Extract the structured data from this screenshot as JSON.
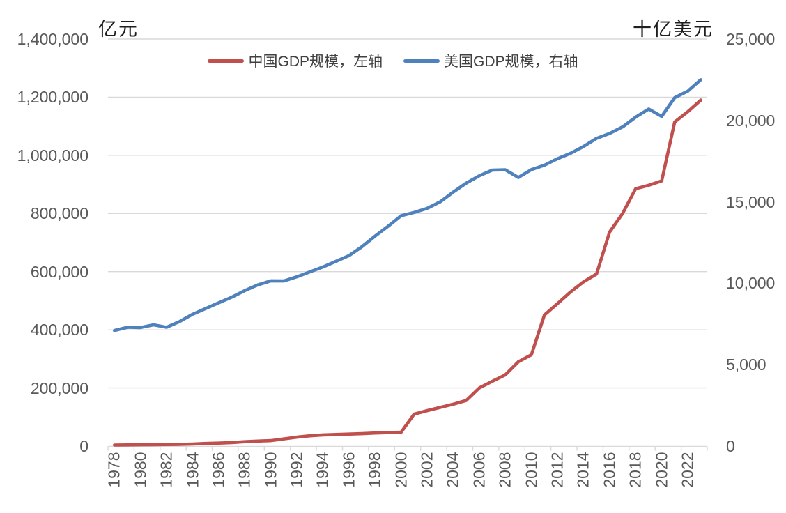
{
  "chart_data": {
    "type": "line",
    "title": "",
    "legend_position": "top",
    "grid": true,
    "x_label_interval": 2,
    "x": [
      1978,
      1979,
      1980,
      1981,
      1982,
      1983,
      1984,
      1985,
      1986,
      1987,
      1988,
      1989,
      1990,
      1991,
      1992,
      1993,
      1994,
      1995,
      1996,
      1997,
      1998,
      1999,
      2000,
      2001,
      2002,
      2003,
      2004,
      2005,
      2006,
      2007,
      2008,
      2009,
      2010,
      2011,
      2012,
      2013,
      2014,
      2015,
      2016,
      2017,
      2018,
      2019,
      2020,
      2021,
      2022,
      2023
    ],
    "series": [
      {
        "name": "中国GDP规模，左轴",
        "axis": "left",
        "color": "#C0504D",
        "values": [
          3700,
          4100,
          4600,
          4900,
          5400,
          6000,
          7300,
          9100,
          10400,
          12200,
          15200,
          17200,
          19000,
          25000,
          31000,
          35500,
          38500,
          40000,
          41500,
          43000,
          45000,
          46500,
          48000,
          110000,
          122000,
          133000,
          144000,
          157000,
          200000,
          223000,
          245000,
          290000,
          314000,
          451000,
          490000,
          530000,
          565000,
          592000,
          736000,
          800000,
          885000,
          897000,
          912000,
          1115000,
          1150000,
          1190000
        ]
      },
      {
        "name": "美国GDP规模，右轴",
        "axis": "right",
        "color": "#4F81BD",
        "values": [
          7100,
          7300,
          7280,
          7450,
          7300,
          7650,
          8100,
          8450,
          8800,
          9150,
          9550,
          9900,
          10150,
          10140,
          10400,
          10700,
          11000,
          11350,
          11700,
          12250,
          12900,
          13500,
          14150,
          14350,
          14600,
          15000,
          15600,
          16150,
          16600,
          16950,
          16970,
          16500,
          16980,
          17250,
          17650,
          17980,
          18400,
          18900,
          19200,
          19600,
          20200,
          20700,
          20250,
          21400,
          21800,
          22500
        ]
      }
    ],
    "left_axis": {
      "title": "亿元",
      "min": 0,
      "max": 1400000,
      "tick_values": [
        0,
        200000,
        400000,
        600000,
        800000,
        1000000,
        1200000,
        1400000
      ],
      "tick_labels": [
        "0",
        "200,000",
        "400,000",
        "600,000",
        "800,000",
        "1,000,000",
        "1,200,000",
        "1,400,000"
      ]
    },
    "right_axis": {
      "title": "十亿美元",
      "min": 0,
      "max": 25000,
      "tick_values": [
        0,
        5000,
        10000,
        15000,
        20000,
        25000
      ],
      "tick_labels": [
        "0",
        "5,000",
        "10,000",
        "15,000",
        "20,000",
        "25,000"
      ]
    },
    "colors": {
      "gridline": "#D9D9D9",
      "axis_line": "#D9D9D9",
      "tick_text": "#595959",
      "legend_text": "#404040",
      "title_text": "#1F1F1F",
      "background": "#FFFFFF"
    }
  }
}
